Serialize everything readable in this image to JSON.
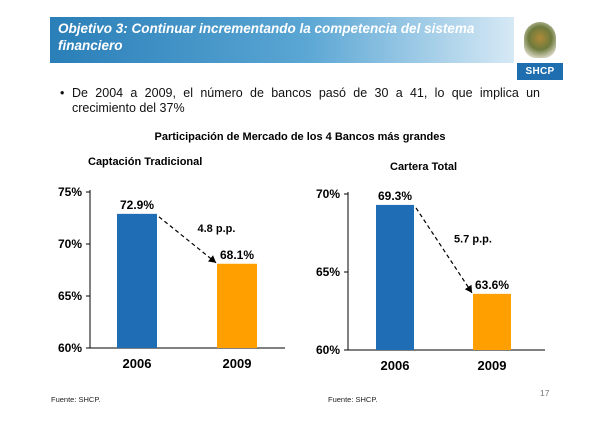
{
  "header": {
    "title": "Objetivo 3: Continuar incrementando la competencia del sistema financiero",
    "logo_text": "SHCP"
  },
  "bullet": {
    "symbol": "•",
    "text": "De 2004 a 2009, el número de bancos pasó de 30 a 41, lo que implica un crecimiento del 37%"
  },
  "section_title": "Participación de Mercado de los 4 Bancos más grandes",
  "colors": {
    "bar_2006": "#1f6db5",
    "bar_2009": "#ffa000",
    "header": "#2a7fb8"
  },
  "chart_data": [
    {
      "type": "bar",
      "title": "Captación Tradicional",
      "categories": [
        "2006",
        "2009"
      ],
      "values": [
        72.9,
        68.1
      ],
      "value_labels": [
        "72.9%",
        "68.1%"
      ],
      "ylim": [
        60,
        75
      ],
      "yticks": [
        60,
        65,
        70,
        75
      ],
      "ytick_labels": [
        "60%",
        "65%",
        "70%",
        "75%"
      ],
      "annotation": "4.8 p.p.",
      "source": "Fuente: SHCP."
    },
    {
      "type": "bar",
      "title": "Cartera Total",
      "categories": [
        "2006",
        "2009"
      ],
      "values": [
        69.3,
        63.6
      ],
      "value_labels": [
        "69.3%",
        "63.6%"
      ],
      "ylim": [
        60,
        70
      ],
      "yticks": [
        60,
        65,
        70
      ],
      "ytick_labels": [
        "60%",
        "65%",
        "70%"
      ],
      "annotation": "5.7 p.p.",
      "source": "Fuente: SHCP."
    }
  ],
  "page_number": "17"
}
